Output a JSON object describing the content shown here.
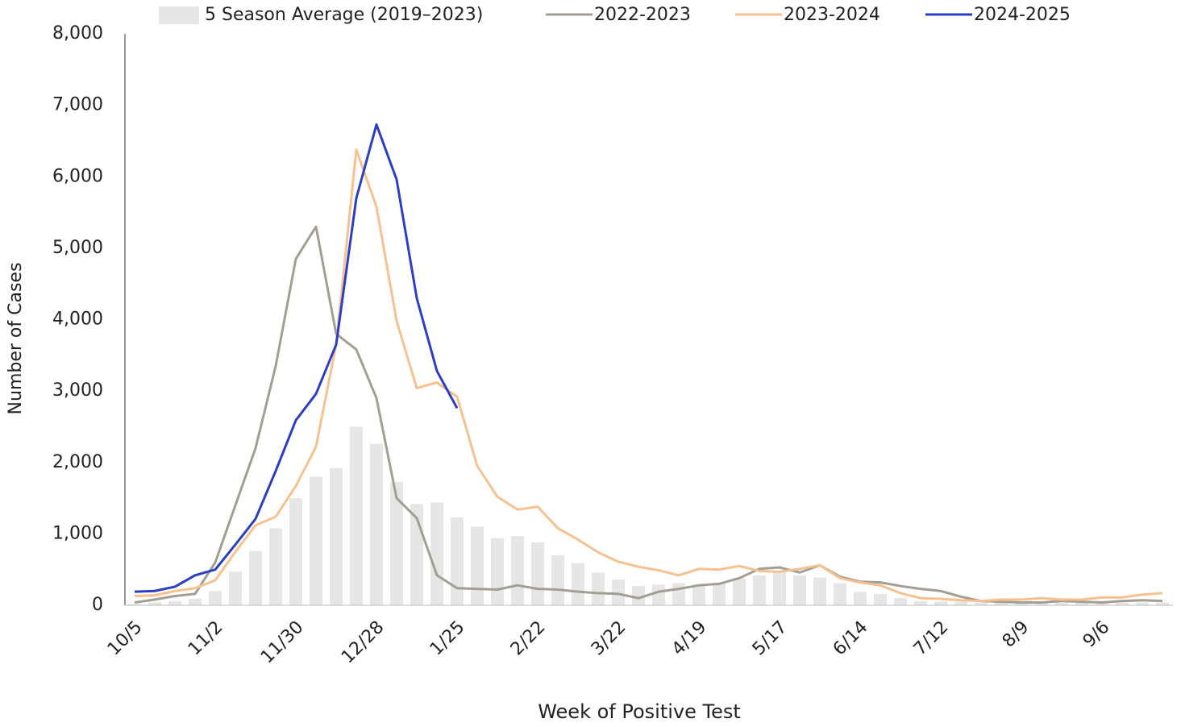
{
  "chart_data": {
    "type": "line",
    "x_label": "Week of Positive Test",
    "y_label": "Number of Cases",
    "categories": [
      "10/5",
      null,
      null,
      null,
      "11/2",
      null,
      null,
      null,
      "11/30",
      null,
      null,
      null,
      "12/28",
      null,
      null,
      null,
      "1/25",
      null,
      null,
      null,
      "2/22",
      null,
      null,
      null,
      "3/22",
      null,
      null,
      null,
      "4/19",
      null,
      null,
      null,
      "5/17",
      null,
      null,
      null,
      "6/14",
      null,
      null,
      null,
      "7/12",
      null,
      null,
      null,
      "8/9",
      null,
      null,
      null,
      "9/6",
      null,
      null,
      null
    ],
    "ylim": [
      0,
      8000
    ],
    "yticks": [
      0,
      {
        "value": 1000,
        "label": "1,000"
      },
      {
        "value": 2000,
        "label": "2,000"
      },
      {
        "value": 3000,
        "label": "3,000"
      },
      {
        "value": 4000,
        "label": "4,000"
      },
      {
        "value": 5000,
        "label": "5,000"
      },
      {
        "value": 6000,
        "label": "6,000"
      },
      {
        "value": 7000,
        "label": "7,000"
      },
      {
        "value": 8000,
        "label": "8,000"
      }
    ],
    "series": [
      {
        "name": "5 Season Average (2019–2023)",
        "type": "bar",
        "color": "#e6e6e6",
        "values": [
          20,
          40,
          60,
          90,
          200,
          470,
          760,
          1080,
          1500,
          1800,
          1920,
          2500,
          2260,
          1730,
          1420,
          1440,
          1230,
          1100,
          940,
          970,
          880,
          700,
          590,
          460,
          360,
          270,
          290,
          310,
          290,
          300,
          380,
          420,
          470,
          420,
          390,
          310,
          190,
          160,
          100,
          60,
          50,
          50,
          40,
          40,
          40,
          40,
          40,
          40,
          30,
          40,
          40,
          40
        ]
      },
      {
        "name": "2022-2023",
        "type": "line",
        "color": "#a39e93",
        "values": [
          40,
          80,
          130,
          160,
          600,
          1400,
          2200,
          3350,
          4850,
          5300,
          3800,
          3580,
          2900,
          1500,
          1220,
          420,
          240,
          230,
          220,
          280,
          230,
          220,
          190,
          170,
          160,
          100,
          190,
          230,
          280,
          300,
          380,
          510,
          530,
          460,
          560,
          400,
          330,
          320,
          270,
          230,
          200,
          120,
          60,
          50,
          40,
          40,
          60,
          50,
          40,
          60,
          70,
          60
        ]
      },
      {
        "name": "2023-2024",
        "type": "line",
        "color": "#f7c18f",
        "values": [
          130,
          140,
          200,
          240,
          350,
          750,
          1120,
          1240,
          1670,
          2220,
          3650,
          6380,
          5580,
          3980,
          3040,
          3120,
          2920,
          1950,
          1520,
          1340,
          1380,
          1080,
          920,
          740,
          610,
          540,
          490,
          420,
          510,
          500,
          550,
          480,
          470,
          510,
          560,
          380,
          320,
          280,
          170,
          100,
          90,
          70,
          60,
          80,
          80,
          100,
          80,
          80,
          110,
          110,
          150,
          170
        ]
      },
      {
        "name": "2024-2025",
        "type": "line",
        "color": "#2b3fc4",
        "values": [
          190,
          200,
          260,
          420,
          500,
          850,
          1210,
          1880,
          2590,
          2960,
          3650,
          5700,
          6730,
          5960,
          4300,
          3280,
          2760,
          null,
          null,
          null,
          null,
          null,
          null,
          null,
          null,
          null,
          null,
          null,
          null,
          null,
          null,
          null,
          null,
          null,
          null,
          null,
          null,
          null,
          null,
          null,
          null,
          null,
          null,
          null,
          null,
          null,
          null,
          null,
          null,
          null,
          null,
          null
        ]
      }
    ]
  }
}
